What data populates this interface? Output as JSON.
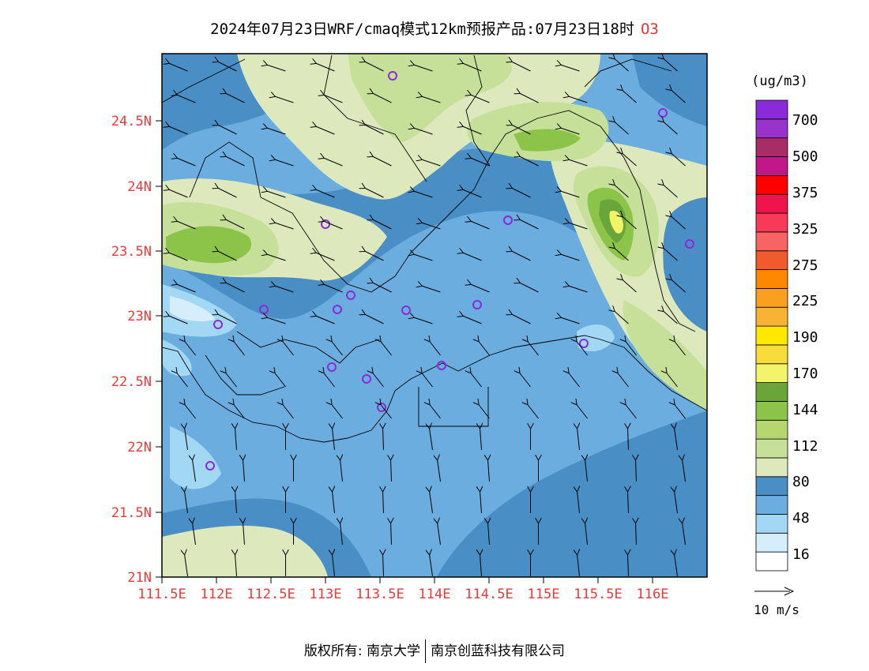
{
  "title": {
    "text": "2024年07月23日WRF/cmaq模式12km预报产品:07月23日18时",
    "species": "O3"
  },
  "axes": {
    "lat_labels": [
      "24.5N",
      "24N",
      "23.5N",
      "23N",
      "22.5N",
      "22N",
      "21.5N",
      "21N"
    ],
    "lon_labels": [
      "111.5E",
      "112E",
      "112.5E",
      "113E",
      "113.5E",
      "114E",
      "114.5E",
      "115E",
      "115.5E",
      "116E"
    ],
    "label_color": "#e83a3a"
  },
  "legend": {
    "unit": "(ug/m3)",
    "labels": [
      "700",
      "500",
      "375",
      "325",
      "275",
      "225",
      "190",
      "170",
      "144",
      "112",
      "80",
      "48",
      "16"
    ],
    "colors": [
      "#ffffff",
      "#d6eefb",
      "#a3d8f4",
      "#6aadde",
      "#4a8ec6",
      "#dde9bd",
      "#c6e09a",
      "#b6d770",
      "#8cc44a",
      "#6aa53a",
      "#f4f46a",
      "#f8dc3c",
      "#ffe800",
      "#f8b234",
      "#f9a020",
      "#ff8800",
      "#f05a2c",
      "#f86464",
      "#f83a58",
      "#f0144c",
      "#ff0000",
      "#c01888",
      "#a82c66",
      "#9a32cc",
      "#8a2ad8"
    ]
  },
  "wind_scale": {
    "label": "10 m/s"
  },
  "copyright": {
    "left": "版权所有: 南京大学",
    "right": "南京创蓝科技有限公司"
  }
}
